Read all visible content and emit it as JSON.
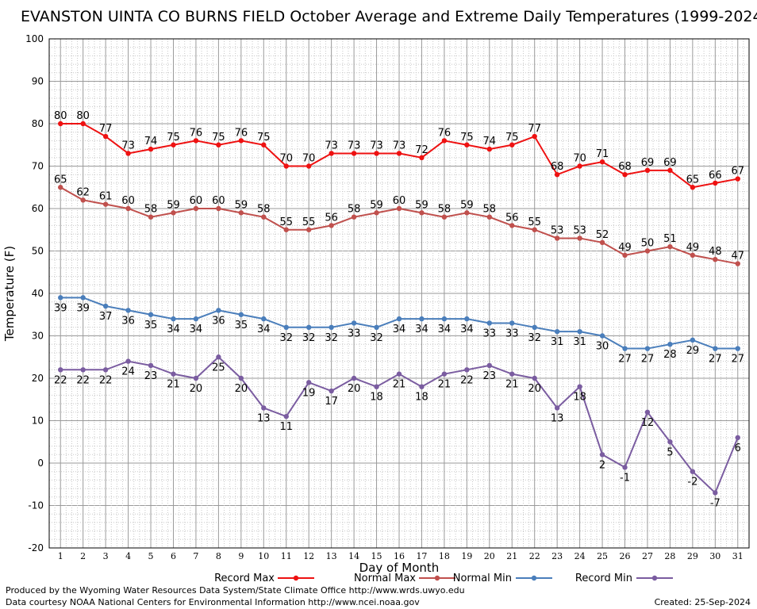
{
  "chart_data": {
    "type": "line",
    "title": "EVANSTON UINTA CO BURNS FIELD October Average and Extreme Daily Temperatures (1999-2024)",
    "xlabel": "Day of Month",
    "ylabel": "Temperature (F)",
    "x": [
      1,
      2,
      3,
      4,
      5,
      6,
      7,
      8,
      9,
      10,
      11,
      12,
      13,
      14,
      15,
      16,
      17,
      18,
      19,
      20,
      21,
      22,
      23,
      24,
      25,
      26,
      27,
      28,
      29,
      30,
      31
    ],
    "xlim": [
      0.5,
      31.5
    ],
    "ylim": [
      -20,
      100
    ],
    "yticks": [
      -20,
      -10,
      0,
      10,
      20,
      30,
      40,
      50,
      60,
      70,
      80,
      90,
      100
    ],
    "grid": true,
    "legend_position": "bottom",
    "series": [
      {
        "name": "Record Max",
        "color": "#ee1111",
        "values": [
          80,
          80,
          77,
          73,
          74,
          75,
          76,
          75,
          76,
          75,
          70,
          70,
          73,
          73,
          73,
          73,
          72,
          76,
          75,
          74,
          75,
          77,
          68,
          70,
          71,
          68,
          69,
          69,
          65,
          66,
          67
        ]
      },
      {
        "name": "Normal Max",
        "color": "#c0504d",
        "values": [
          65,
          62,
          61,
          60,
          58,
          59,
          60,
          60,
          59,
          58,
          55,
          55,
          56,
          58,
          59,
          60,
          59,
          58,
          59,
          58,
          56,
          55,
          53,
          53,
          52,
          49,
          50,
          51,
          49,
          48,
          47
        ]
      },
      {
        "name": "Normal Min",
        "color": "#4a7ebb",
        "values": [
          39,
          39,
          37,
          36,
          35,
          34,
          34,
          36,
          35,
          34,
          32,
          32,
          32,
          33,
          32,
          34,
          34,
          34,
          34,
          33,
          33,
          32,
          31,
          31,
          30,
          27,
          27,
          28,
          29,
          27,
          27
        ]
      },
      {
        "name": "Record Min",
        "color": "#7a5ca0",
        "values": [
          22,
          22,
          22,
          24,
          23,
          21,
          20,
          25,
          20,
          13,
          11,
          19,
          17,
          20,
          18,
          21,
          18,
          21,
          22,
          23,
          21,
          20,
          13,
          18,
          2,
          -1,
          12,
          5,
          -2,
          -7,
          6
        ]
      }
    ]
  },
  "footer": {
    "left_line1": "Produced by the Wyoming Water Resources Data System/State Climate Office http://www.wrds.uwyo.edu",
    "left_line2": "Data courtesy NOAA National Centers for Environmental Information http://www.ncei.noaa.gov",
    "created": "Created:  25-Sep-2024"
  }
}
